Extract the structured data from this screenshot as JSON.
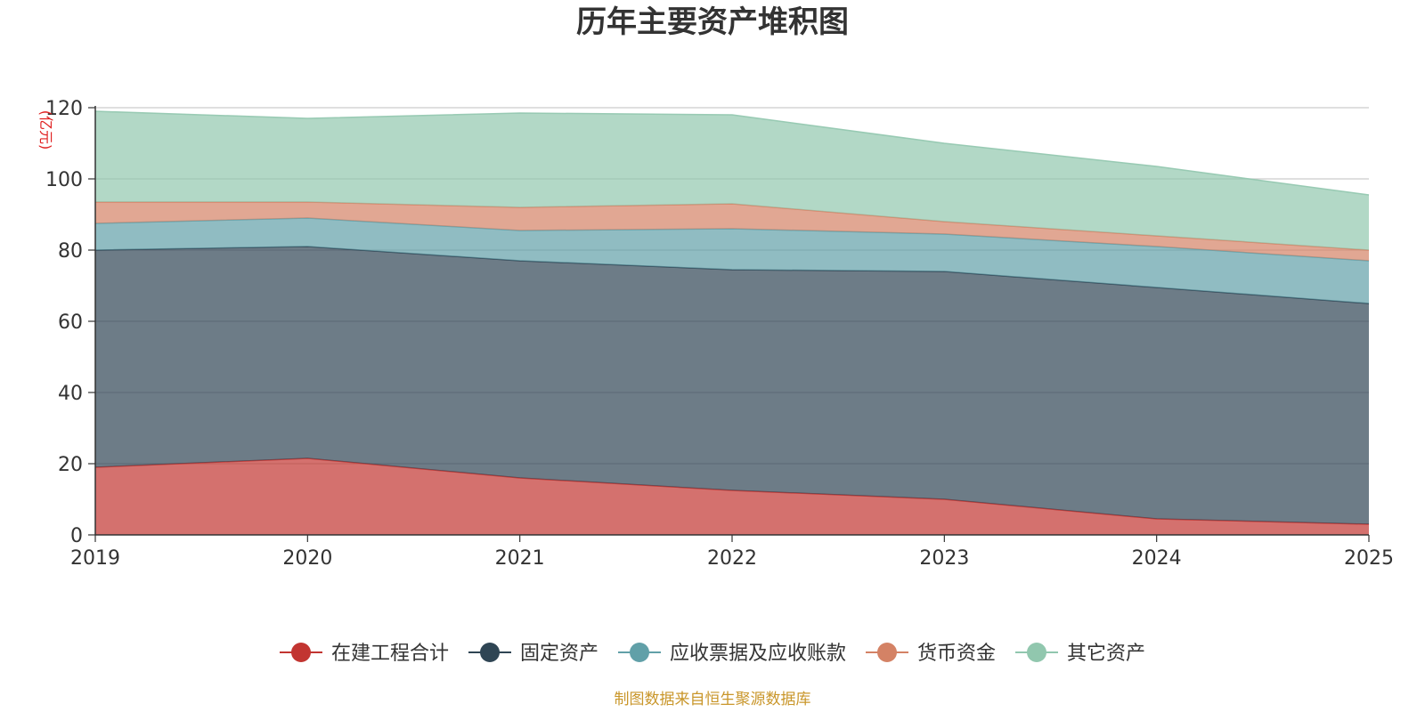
{
  "chart_data": {
    "type": "area",
    "stacked": true,
    "title": "历年主要资产堆积图",
    "ylabel": "(亿元)",
    "xlabel": "",
    "x": [
      "2019",
      "2020",
      "2021",
      "2022",
      "2023",
      "2024",
      "2025"
    ],
    "ylim": [
      0,
      120
    ],
    "yticks": [
      0,
      20,
      40,
      60,
      80,
      100,
      120
    ],
    "grid": true,
    "legend_position": "bottom-center",
    "series": [
      {
        "name": "在建工程合计",
        "color": "#c23531",
        "values": [
          19.0,
          21.5,
          16.0,
          12.5,
          10.0,
          4.5,
          3.0
        ]
      },
      {
        "name": "固定资产",
        "color": "#2f4554",
        "values": [
          61.0,
          59.5,
          61.0,
          62.0,
          64.0,
          65.0,
          62.0
        ]
      },
      {
        "name": "应收票据及应收账款",
        "color": "#61a0a8",
        "values": [
          7.5,
          8.0,
          8.5,
          11.5,
          10.5,
          11.5,
          12.0
        ]
      },
      {
        "name": "货币资金",
        "color": "#d48265",
        "values": [
          6.0,
          4.5,
          6.5,
          7.0,
          3.5,
          3.0,
          3.0
        ]
      },
      {
        "name": "其它资产",
        "color": "#91c7ae",
        "values": [
          25.5,
          23.5,
          26.5,
          25.0,
          22.0,
          19.5,
          15.5
        ]
      }
    ],
    "source": "制图数据来自恒生聚源数据库"
  }
}
